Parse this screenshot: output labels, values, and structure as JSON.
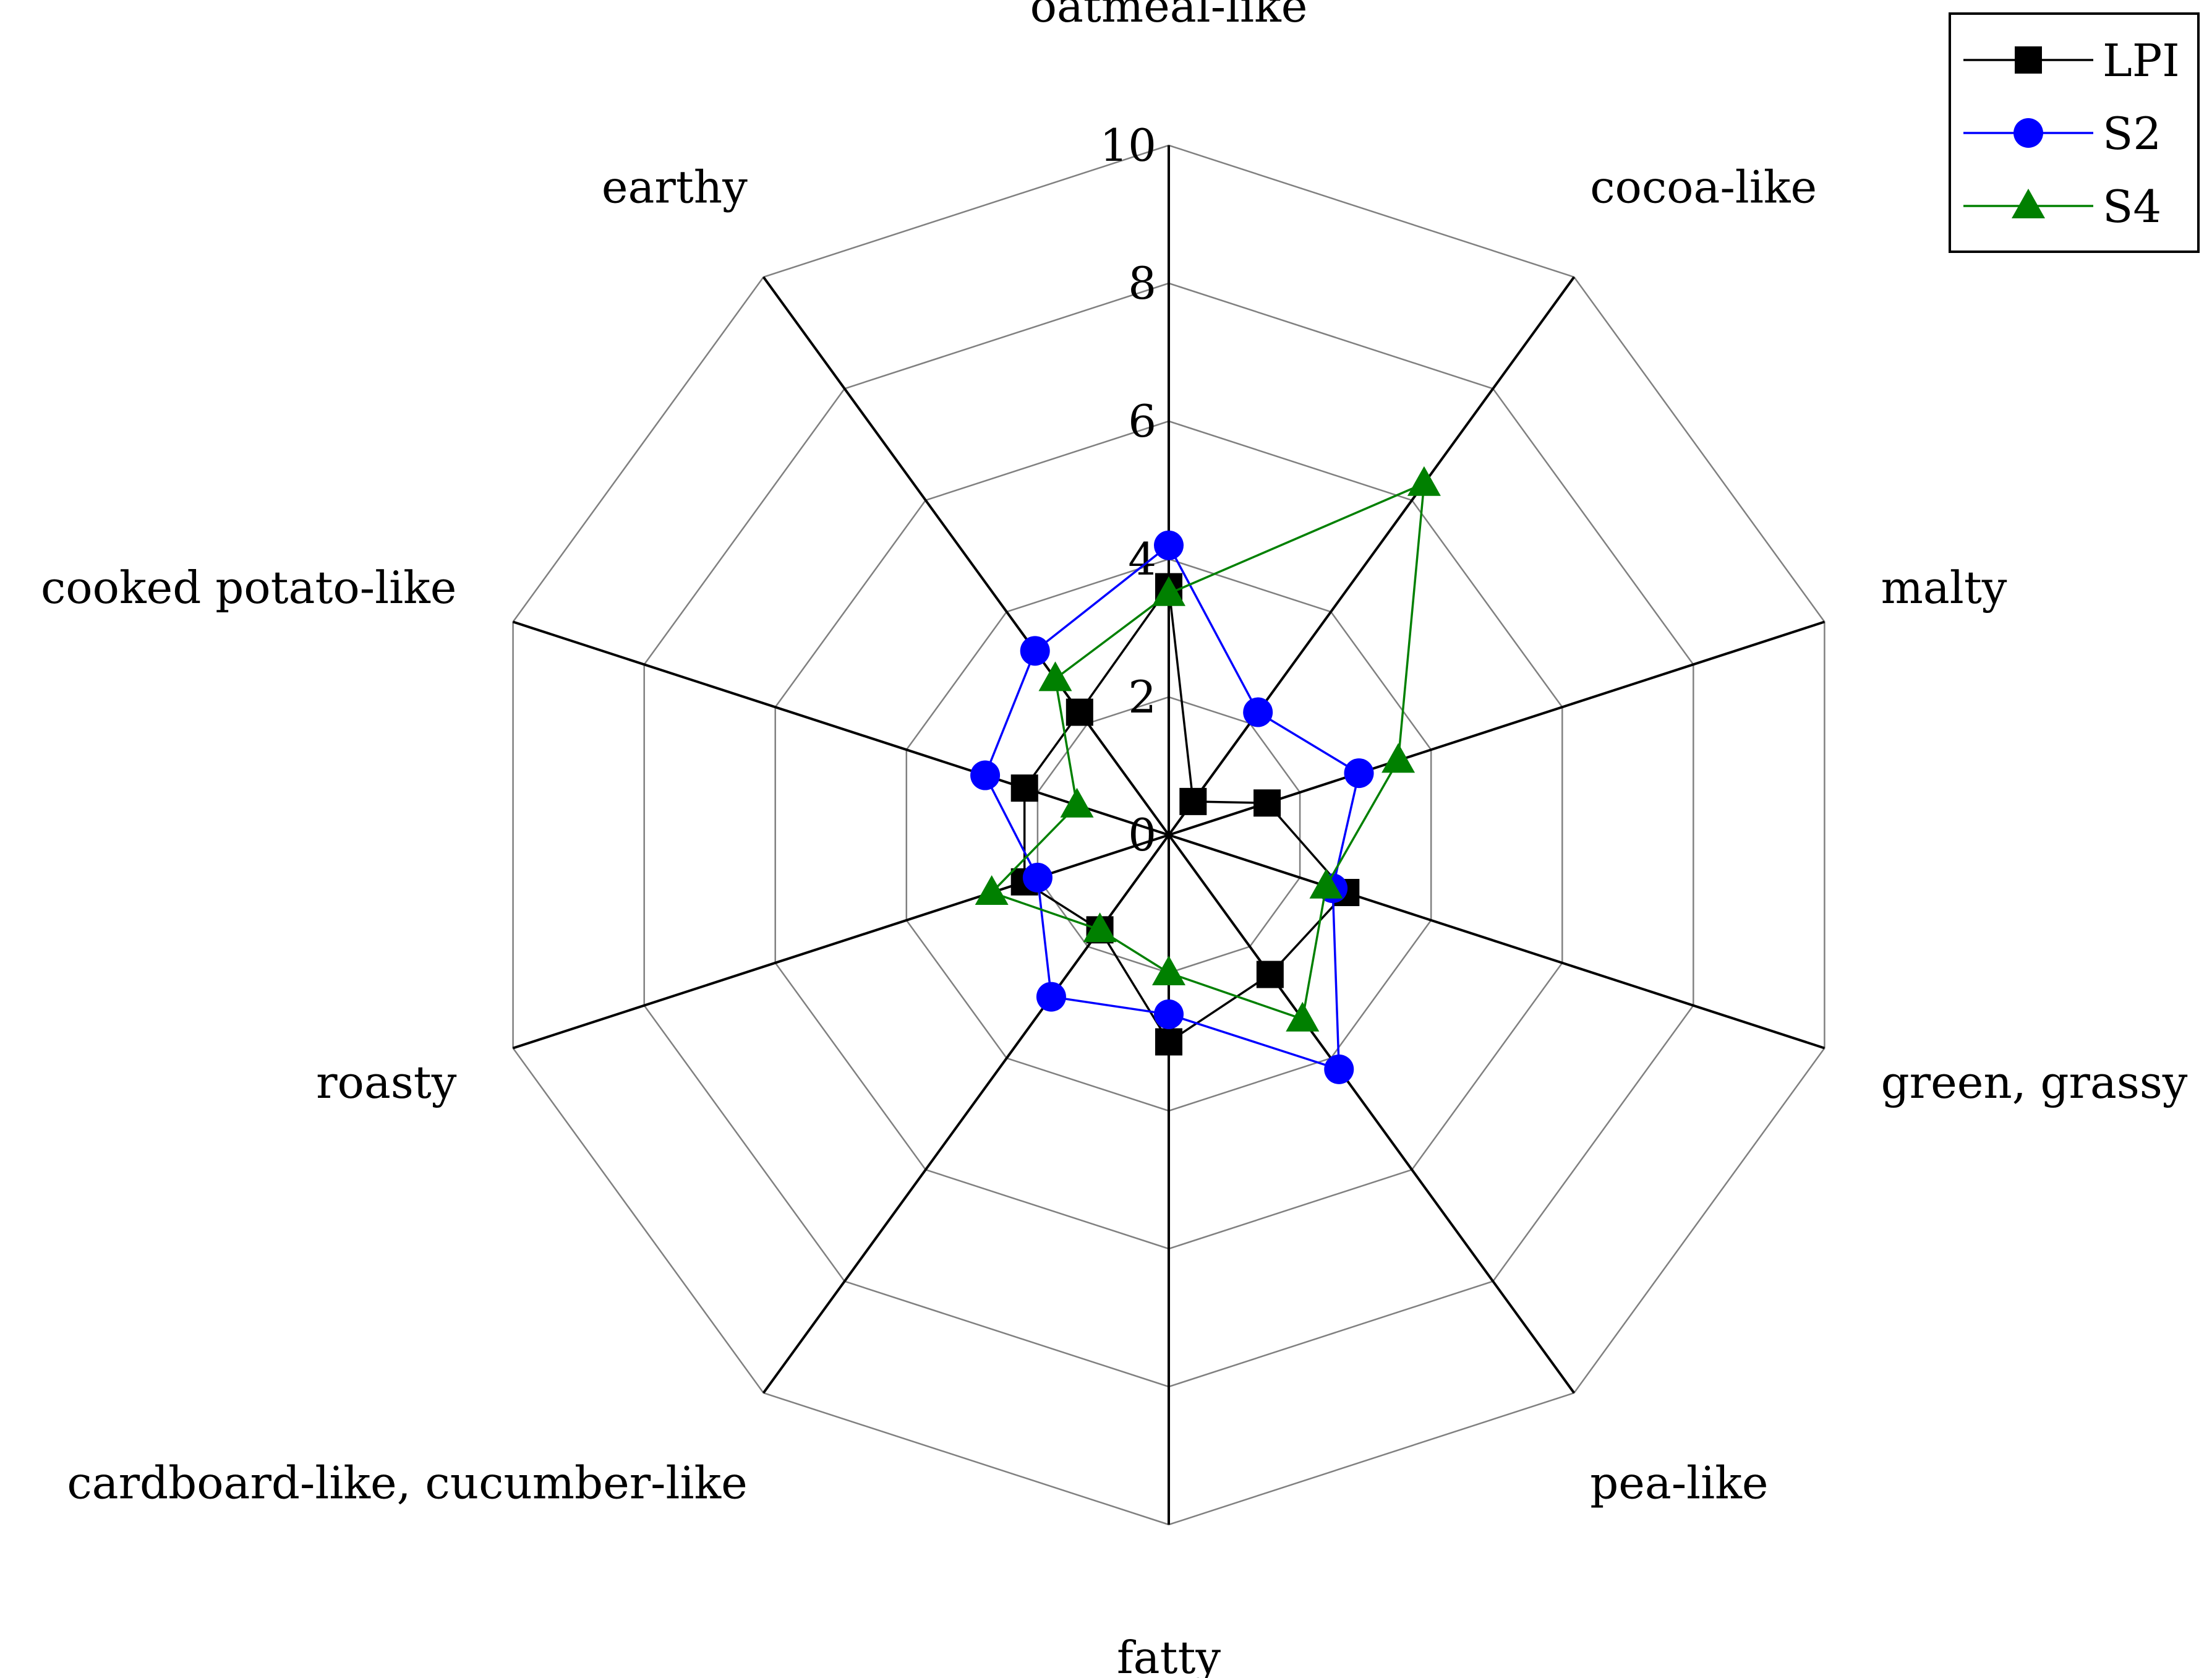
{
  "chart_data": {
    "type": "radar",
    "title": "",
    "categories": [
      "oatmeal-like",
      "cocoa-like",
      "malty",
      "green, grassy",
      "pea-like",
      "fatty",
      "cardboard-like, cucumber-like",
      "roasty",
      "cooked potato-like",
      "earthy"
    ],
    "r_range": [
      0,
      10
    ],
    "r_ticks": [
      "0",
      "2",
      "4",
      "6",
      "8",
      "10"
    ],
    "grid": true,
    "legend_position": "top-right",
    "series": [
      {
        "name": "LPI",
        "color": "#000000",
        "marker": "square",
        "values": [
          3.6,
          0.6,
          1.5,
          2.7,
          2.5,
          3.0,
          1.7,
          2.2,
          2.2,
          2.2
        ]
      },
      {
        "name": "S2",
        "color": "#0000ff",
        "marker": "circle",
        "values": [
          4.2,
          2.2,
          2.9,
          2.5,
          4.2,
          2.6,
          2.9,
          2.0,
          2.8,
          3.3
        ]
      },
      {
        "name": "S4",
        "color": "#008000",
        "marker": "triangle",
        "values": [
          3.5,
          6.3,
          3.5,
          2.4,
          3.3,
          2.0,
          1.7,
          2.7,
          1.4,
          2.8
        ]
      }
    ]
  }
}
